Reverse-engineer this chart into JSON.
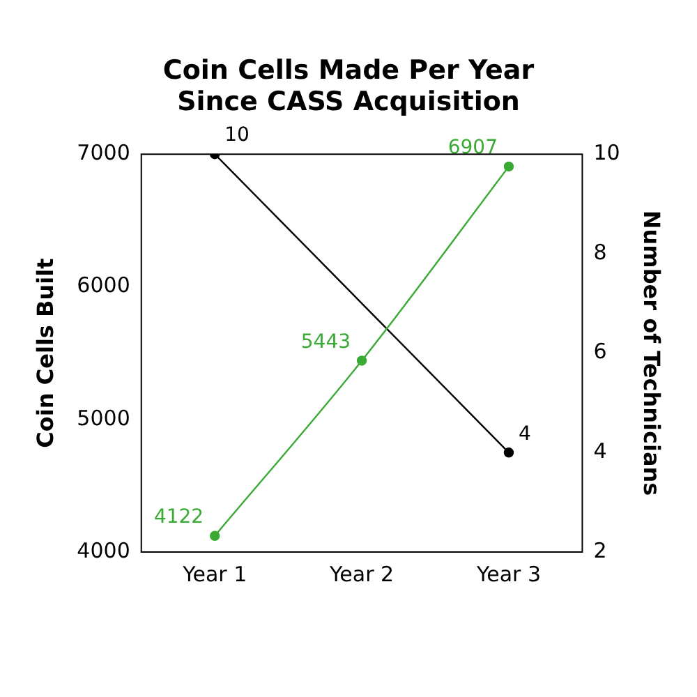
{
  "chart_data": {
    "type": "line",
    "title": [
      "Coin Cells Made Per Year",
      "Since CASS Acquisition"
    ],
    "ylabel": "Coin Cells Built",
    "y2label": "Number of Technicians",
    "categories": [
      "Year 1",
      "Year 2",
      "Year 3"
    ],
    "series": [
      {
        "color": "#3aaa35",
        "values": [
          4122,
          5443,
          6907
        ]
      },
      {
        "color": "#000000",
        "values": [
          10,
          null,
          4
        ],
        "axis": "y2"
      }
    ],
    "ylim": [
      4000,
      7000
    ],
    "yticks": [
      4000,
      5000,
      6000,
      7000
    ],
    "y2lim": [
      2,
      10
    ],
    "y2ticks": [
      2,
      4,
      6,
      8,
      10
    ],
    "grid": false,
    "legend": false,
    "marker": "circle",
    "line_style": "solid",
    "data_labels": true
  }
}
